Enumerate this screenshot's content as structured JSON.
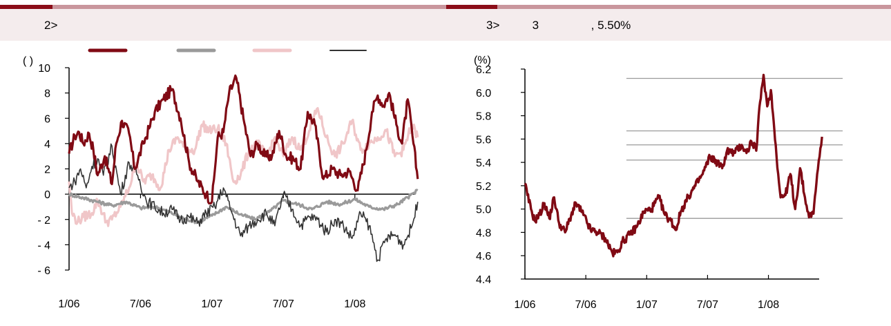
{
  "colors": {
    "rule_accent": "#8b0d18",
    "rule_rest": "#c9969d",
    "band": "#f4eced",
    "series_dark_red": "#800a14",
    "series_gray": "#9a9a9a",
    "series_pink": "#f0c6c8",
    "series_dark": "#333333",
    "hline": "#9a9a9a"
  },
  "left_panel": {
    "title": "2>",
    "chart_data": {
      "type": "line",
      "unit_label": "(           )",
      "yticks": [
        "10",
        "8",
        "6",
        "4",
        "2",
        "0",
        "- 2",
        "- 4",
        "- 6"
      ],
      "xticks": [
        "1/06",
        "7/06",
        "1/07",
        "7/07",
        "1/08"
      ],
      "ylim": [
        -6,
        10
      ],
      "x_range": [
        "2006-01",
        "2008-06"
      ],
      "legend_placement": "top",
      "series": [
        {
          "color": "#800a14",
          "x": [
            2006.0,
            2006.04,
            2006.07,
            2006.1,
            2006.14,
            2006.17,
            2006.2,
            2006.25,
            2006.3,
            2006.33,
            2006.37,
            2006.42,
            2006.46,
            2006.52,
            2006.56,
            2006.6,
            2006.66,
            2006.72,
            2006.78,
            2006.84,
            2006.9,
            2006.96,
            2007.0,
            2007.04,
            2007.08,
            2007.12,
            2007.17,
            2007.22,
            2007.27,
            2007.32,
            2007.37,
            2007.42,
            2007.47,
            2007.52,
            2007.57,
            2007.62,
            2007.67,
            2007.72,
            2007.78,
            2007.84,
            2007.9,
            2007.96,
            2008.02,
            2008.08,
            2008.12,
            2008.16,
            2008.2,
            2008.24,
            2008.29,
            2008.33,
            2008.37,
            2008.41,
            2008.44
          ],
          "y": [
            3.2,
            4.6,
            4.9,
            4.0,
            4.8,
            3.5,
            1.5,
            3.0,
            0.8,
            4.0,
            5.8,
            4.8,
            2.0,
            4.0,
            5.2,
            6.5,
            7.5,
            8.3,
            6.0,
            2.5,
            1.0,
            0.0,
            -0.6,
            4.5,
            4.9,
            8.0,
            9.2,
            6.0,
            3.0,
            4.0,
            3.0,
            3.0,
            5.0,
            3.0,
            2.8,
            2.0,
            6.5,
            5.5,
            1.2,
            2.0,
            1.5,
            1.8,
            0.3,
            3.5,
            6.5,
            7.8,
            7.0,
            8.0,
            5.5,
            4.0,
            7.5,
            4.0,
            1.2
          ]
        },
        {
          "color": "#9a9a9a",
          "x": [
            2006.0,
            2006.1,
            2006.2,
            2006.3,
            2006.4,
            2006.5,
            2006.6,
            2006.7,
            2006.8,
            2006.9,
            2007.0,
            2007.1,
            2007.2,
            2007.3,
            2007.4,
            2007.5,
            2007.6,
            2007.7,
            2007.8,
            2007.9,
            2008.0,
            2008.1,
            2008.2,
            2008.3,
            2008.44
          ],
          "y": [
            0.0,
            -0.3,
            -0.6,
            -0.9,
            -0.6,
            -1.1,
            -1.0,
            -1.4,
            -1.9,
            -2.2,
            -1.7,
            -1.0,
            -1.6,
            -2.0,
            -1.4,
            -0.5,
            -0.8,
            -1.2,
            -0.6,
            -0.8,
            -0.4,
            -1.0,
            -1.2,
            -0.8,
            0.3
          ]
        },
        {
          "color": "#f0c6c8",
          "x": [
            2006.0,
            2006.02,
            2006.06,
            2006.1,
            2006.16,
            2006.2,
            2006.26,
            2006.3,
            2006.36,
            2006.42,
            2006.47,
            2006.52,
            2006.58,
            2006.64,
            2006.7,
            2006.76,
            2006.82,
            2006.88,
            2006.93,
            2006.98,
            2007.04,
            2007.1,
            2007.15,
            2007.2,
            2007.26,
            2007.32,
            2007.38,
            2007.44,
            2007.5,
            2007.56,
            2007.62,
            2007.68,
            2007.74,
            2007.8,
            2007.86,
            2007.92,
            2007.98,
            2008.04,
            2008.1,
            2008.16,
            2008.22,
            2008.28,
            2008.34,
            2008.4,
            2008.44
          ],
          "y": [
            1.0,
            -1.5,
            -2.2,
            -1.8,
            -1.5,
            -0.5,
            -2.2,
            -2.0,
            -1.0,
            0.5,
            2.5,
            1.0,
            1.5,
            0.5,
            3.5,
            4.5,
            3.5,
            3.5,
            5.5,
            5.0,
            5.2,
            4.0,
            1.0,
            1.5,
            3.5,
            4.0,
            3.0,
            4.5,
            3.0,
            4.5,
            3.5,
            5.0,
            6.8,
            4.5,
            3.0,
            4.0,
            5.8,
            3.5,
            4.0,
            4.5,
            5.0,
            3.0,
            3.5,
            5.5,
            4.5
          ]
        },
        {
          "color": "#333333",
          "x": [
            2006.0,
            2006.04,
            2006.08,
            2006.12,
            2006.16,
            2006.2,
            2006.24,
            2006.3,
            2006.36,
            2006.42,
            2006.48,
            2006.54,
            2006.6,
            2006.66,
            2006.72,
            2006.78,
            2006.84,
            2006.9,
            2006.96,
            2007.02,
            2007.08,
            2007.14,
            2007.2,
            2007.26,
            2007.32,
            2007.38,
            2007.44,
            2007.5,
            2007.56,
            2007.62,
            2007.68,
            2007.74,
            2007.8,
            2007.86,
            2007.92,
            2007.98,
            2008.04,
            2008.1,
            2008.16,
            2008.22,
            2008.28,
            2008.34,
            2008.4,
            2008.44
          ],
          "y": [
            0.5,
            1.0,
            2.0,
            0.5,
            2.2,
            2.8,
            1.5,
            3.8,
            0.0,
            2.5,
            1.5,
            -0.5,
            -1.0,
            -1.5,
            -1.2,
            -2.0,
            -1.8,
            -2.3,
            -1.5,
            -1.0,
            0.5,
            -1.5,
            -3.3,
            -2.5,
            -2.0,
            -1.5,
            -2.5,
            0.0,
            -1.2,
            -2.5,
            -1.8,
            -2.0,
            -3.0,
            -2.0,
            -2.5,
            -3.5,
            -1.5,
            -2.5,
            -5.2,
            -3.5,
            -3.2,
            -4.0,
            -2.5,
            -0.6
          ]
        }
      ]
    }
  },
  "right_panel": {
    "title": "3>          3                , 5.50%",
    "chart_data": {
      "type": "line",
      "ylabel": "(%)",
      "yticks": [
        "6.2",
        "6.0",
        "5.8",
        "5.6",
        "5.4",
        "5.2",
        "5.0",
        "4.8",
        "4.6",
        "4.4"
      ],
      "xticks": [
        "1/06",
        "7/06",
        "1/07",
        "7/07",
        "1/08"
      ],
      "ylim": [
        4.4,
        6.2
      ],
      "x_range": [
        "2006-01",
        "2008-06"
      ],
      "hlines_y": [
        6.12,
        5.67,
        5.55,
        5.42,
        4.92
      ],
      "hlines_x_start": "2006-11",
      "series": [
        {
          "color": "#800a14",
          "x": [
            2006.0,
            2006.02,
            2006.05,
            2006.08,
            2006.12,
            2006.16,
            2006.2,
            2006.24,
            2006.28,
            2006.33,
            2006.38,
            2006.42,
            2006.48,
            2006.54,
            2006.6,
            2006.66,
            2006.72,
            2006.76,
            2006.8,
            2006.86,
            2006.92,
            2006.98,
            2007.04,
            2007.1,
            2007.15,
            2007.2,
            2007.24,
            2007.28,
            2007.34,
            2007.4,
            2007.46,
            2007.52,
            2007.58,
            2007.62,
            2007.66,
            2007.72,
            2007.78,
            2007.82,
            2007.86,
            2007.9,
            2007.92,
            2007.96,
            2007.99,
            2008.02,
            2008.06,
            2008.08,
            2008.1,
            2008.14,
            2008.18,
            2008.22,
            2008.26,
            2008.3,
            2008.32,
            2008.34,
            2008.37,
            2008.4,
            2008.42,
            2008.44
          ],
          "y": [
            5.22,
            5.12,
            5.0,
            4.9,
            4.95,
            5.05,
            4.92,
            5.1,
            4.88,
            4.8,
            4.95,
            5.05,
            4.95,
            4.82,
            4.8,
            4.75,
            4.62,
            4.63,
            4.72,
            4.78,
            4.85,
            4.98,
            5.0,
            5.1,
            4.95,
            4.9,
            4.82,
            4.98,
            5.1,
            5.2,
            5.3,
            5.45,
            5.4,
            5.35,
            5.5,
            5.48,
            5.55,
            5.48,
            5.58,
            5.5,
            5.8,
            6.15,
            5.88,
            6.02,
            5.55,
            5.3,
            5.1,
            5.12,
            5.3,
            5.0,
            5.35,
            5.1,
            4.98,
            4.95,
            4.96,
            5.3,
            5.45,
            5.62
          ]
        }
      ]
    }
  }
}
